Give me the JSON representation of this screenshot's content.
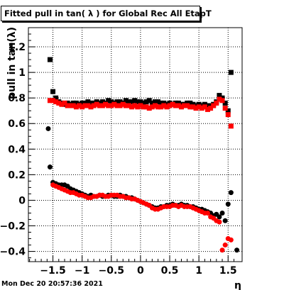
{
  "title": "Fitted pull in tan( λ ) for Global Rec All EtapT",
  "timestamp": "Mon Dec 20 20:57:36 2021",
  "chart_data": {
    "type": "scatter",
    "title": "Fitted pull in tan( λ ) for Global Rec All EtapT",
    "xlabel": "η",
    "ylabel": "pull in tan(λ)",
    "xlim": [
      -1.92,
      1.74
    ],
    "ylim": [
      -0.48,
      1.35
    ],
    "x_ticks": [
      -1.5,
      -1,
      -0.5,
      0,
      0.5,
      1,
      1.5
    ],
    "x_tick_labels": [
      "−1.5",
      "−1",
      "−0.5",
      "0",
      "0.5",
      "1",
      "1.5"
    ],
    "y_ticks": [
      -0.4,
      -0.2,
      0,
      0.2,
      0.4,
      0.6,
      0.8,
      1,
      1.2
    ],
    "y_tick_labels": [
      "−0.4",
      "−0.2",
      "0",
      "0.2",
      "0.4",
      "0.6",
      "0.8",
      "1",
      "1.2"
    ],
    "grid": true,
    "series": [
      {
        "marker": "square",
        "color": "#000000",
        "x": [
          -1.55,
          -1.5,
          -1.45,
          -1.4,
          -1.35,
          -1.3,
          -1.25,
          -1.2,
          -1.15,
          -1.1,
          -1.05,
          -1.0,
          -0.95,
          -0.9,
          -0.85,
          -0.8,
          -0.75,
          -0.7,
          -0.65,
          -0.6,
          -0.55,
          -0.5,
          -0.45,
          -0.4,
          -0.35,
          -0.3,
          -0.25,
          -0.2,
          -0.15,
          -0.1,
          -0.05,
          0.0,
          0.05,
          0.1,
          0.15,
          0.2,
          0.25,
          0.3,
          0.35,
          0.4,
          0.45,
          0.5,
          0.55,
          0.6,
          0.65,
          0.7,
          0.75,
          0.8,
          0.85,
          0.9,
          0.95,
          1.0,
          1.05,
          1.1,
          1.15,
          1.2,
          1.25,
          1.3,
          1.35,
          1.4,
          1.45,
          1.5,
          1.55
        ],
        "y": [
          1.1,
          0.85,
          0.8,
          0.77,
          0.76,
          0.75,
          0.76,
          0.75,
          0.76,
          0.76,
          0.75,
          0.76,
          0.76,
          0.77,
          0.76,
          0.76,
          0.77,
          0.76,
          0.77,
          0.76,
          0.78,
          0.77,
          0.76,
          0.77,
          0.77,
          0.76,
          0.78,
          0.77,
          0.77,
          0.78,
          0.77,
          0.77,
          0.76,
          0.77,
          0.78,
          0.76,
          0.77,
          0.77,
          0.76,
          0.76,
          0.75,
          0.76,
          0.75,
          0.76,
          0.76,
          0.75,
          0.75,
          0.76,
          0.76,
          0.75,
          0.74,
          0.75,
          0.74,
          0.75,
          0.74,
          0.74,
          0.75,
          0.77,
          0.82,
          0.8,
          0.76,
          0.7,
          1.0
        ]
      },
      {
        "marker": "square",
        "color": "#ff0000",
        "x": [
          -1.55,
          -1.5,
          -1.45,
          -1.4,
          -1.35,
          -1.3,
          -1.25,
          -1.2,
          -1.15,
          -1.1,
          -1.05,
          -1.0,
          -0.95,
          -0.9,
          -0.85,
          -0.8,
          -0.75,
          -0.7,
          -0.65,
          -0.6,
          -0.55,
          -0.5,
          -0.45,
          -0.4,
          -0.35,
          -0.3,
          -0.25,
          -0.2,
          -0.15,
          -0.1,
          -0.05,
          0.0,
          0.05,
          0.1,
          0.15,
          0.2,
          0.25,
          0.3,
          0.35,
          0.4,
          0.45,
          0.5,
          0.55,
          0.6,
          0.65,
          0.7,
          0.75,
          0.8,
          0.85,
          0.9,
          0.95,
          1.0,
          1.05,
          1.1,
          1.15,
          1.2,
          1.25,
          1.3,
          1.35,
          1.4,
          1.45,
          1.5,
          1.55
        ],
        "y": [
          0.78,
          0.78,
          0.77,
          0.76,
          0.75,
          0.76,
          0.74,
          0.74,
          0.74,
          0.73,
          0.74,
          0.73,
          0.74,
          0.74,
          0.73,
          0.74,
          0.75,
          0.74,
          0.74,
          0.75,
          0.74,
          0.74,
          0.75,
          0.74,
          0.74,
          0.75,
          0.74,
          0.74,
          0.73,
          0.74,
          0.73,
          0.74,
          0.73,
          0.73,
          0.72,
          0.73,
          0.74,
          0.73,
          0.73,
          0.74,
          0.73,
          0.74,
          0.75,
          0.74,
          0.74,
          0.73,
          0.74,
          0.74,
          0.73,
          0.73,
          0.72,
          0.73,
          0.72,
          0.73,
          0.71,
          0.72,
          0.74,
          0.76,
          0.79,
          0.78,
          0.72,
          0.67,
          0.58
        ]
      },
      {
        "marker": "circle",
        "color": "#000000",
        "x": [
          -1.58,
          -1.55,
          -1.5,
          -1.45,
          -1.4,
          -1.35,
          -1.3,
          -1.25,
          -1.2,
          -1.15,
          -1.1,
          -1.05,
          -1.0,
          -0.95,
          -0.9,
          -0.85,
          -0.8,
          -0.75,
          -0.7,
          -0.65,
          -0.6,
          -0.55,
          -0.5,
          -0.45,
          -0.4,
          -0.35,
          -0.3,
          -0.25,
          -0.2,
          -0.15,
          -0.1,
          -0.05,
          0.0,
          0.05,
          0.1,
          0.15,
          0.2,
          0.25,
          0.3,
          0.35,
          0.4,
          0.45,
          0.5,
          0.55,
          0.6,
          0.65,
          0.7,
          0.75,
          0.8,
          0.85,
          0.9,
          0.95,
          1.0,
          1.05,
          1.1,
          1.15,
          1.2,
          1.25,
          1.3,
          1.35,
          1.4,
          1.45,
          1.5,
          1.55,
          1.65
        ],
        "y": [
          0.56,
          0.26,
          0.14,
          0.13,
          0.12,
          0.12,
          0.12,
          0.11,
          0.09,
          0.08,
          0.07,
          0.06,
          0.05,
          0.04,
          0.03,
          0.04,
          0.03,
          0.03,
          0.04,
          0.03,
          0.03,
          0.04,
          0.04,
          0.03,
          0.03,
          0.04,
          0.03,
          0.03,
          0.02,
          0.02,
          0.01,
          0.0,
          -0.01,
          -0.02,
          -0.03,
          -0.04,
          -0.05,
          -0.06,
          -0.06,
          -0.05,
          -0.05,
          -0.04,
          -0.04,
          -0.03,
          -0.04,
          -0.04,
          -0.03,
          -0.04,
          -0.04,
          -0.05,
          -0.05,
          -0.06,
          -0.07,
          -0.07,
          -0.08,
          -0.09,
          -0.1,
          -0.12,
          -0.11,
          -0.13,
          -0.1,
          -0.16,
          -0.03,
          0.06,
          -0.39
        ]
      },
      {
        "marker": "circle",
        "color": "#ff0000",
        "x": [
          -1.5,
          -1.45,
          -1.4,
          -1.35,
          -1.3,
          -1.25,
          -1.2,
          -1.15,
          -1.1,
          -1.05,
          -1.0,
          -0.95,
          -0.9,
          -0.85,
          -0.8,
          -0.75,
          -0.7,
          -0.65,
          -0.6,
          -0.55,
          -0.5,
          -0.45,
          -0.4,
          -0.35,
          -0.3,
          -0.25,
          -0.2,
          -0.15,
          -0.1,
          -0.05,
          0.0,
          0.05,
          0.1,
          0.15,
          0.2,
          0.25,
          0.3,
          0.35,
          0.4,
          0.45,
          0.5,
          0.55,
          0.6,
          0.65,
          0.7,
          0.75,
          0.8,
          0.85,
          0.9,
          0.95,
          1.0,
          1.05,
          1.1,
          1.15,
          1.2,
          1.25,
          1.3,
          1.35,
          1.4,
          1.45,
          1.5,
          1.55
        ],
        "y": [
          0.12,
          0.11,
          0.1,
          0.09,
          0.08,
          0.07,
          0.06,
          0.06,
          0.05,
          0.04,
          0.04,
          0.03,
          0.02,
          0.02,
          0.03,
          0.03,
          0.04,
          0.04,
          0.03,
          0.03,
          0.04,
          0.04,
          0.04,
          0.03,
          0.03,
          0.02,
          0.02,
          0.01,
          0.01,
          0.0,
          -0.01,
          -0.02,
          -0.03,
          -0.04,
          -0.06,
          -0.07,
          -0.07,
          -0.06,
          -0.05,
          -0.05,
          -0.05,
          -0.04,
          -0.04,
          -0.05,
          -0.04,
          -0.05,
          -0.05,
          -0.05,
          -0.06,
          -0.07,
          -0.08,
          -0.09,
          -0.1,
          -0.1,
          -0.13,
          -0.14,
          -0.16,
          -0.17,
          -0.39,
          -0.35,
          -0.3,
          -0.31
        ]
      }
    ]
  }
}
